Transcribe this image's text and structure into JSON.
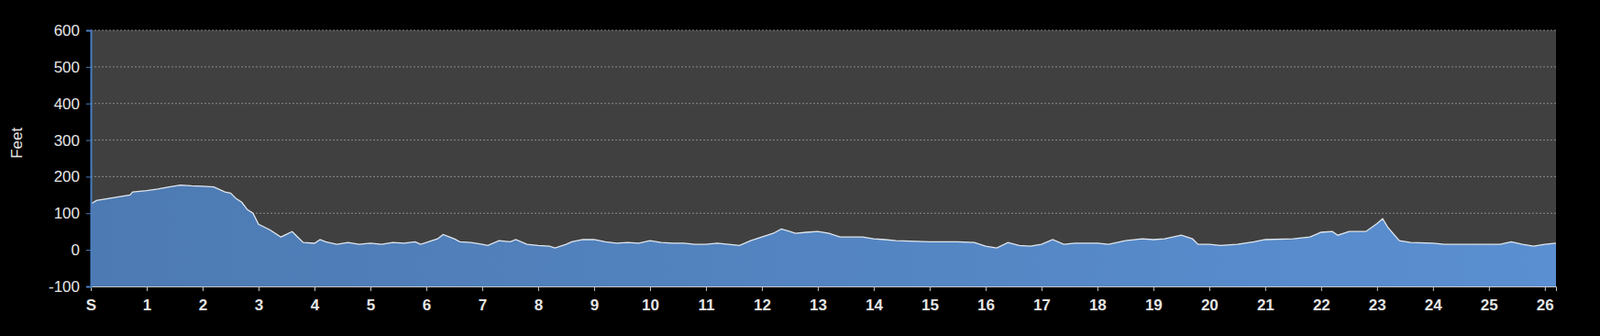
{
  "chart_data": {
    "type": "area",
    "y_label": "Feet",
    "color": "#5a8fd1",
    "grid": true,
    "xlim": [
      0,
      26.2
    ],
    "ylim": [
      -100,
      600
    ],
    "xticks": [
      {
        "value": 0,
        "label": "S"
      },
      1,
      2,
      3,
      4,
      5,
      6,
      7,
      8,
      9,
      10,
      11,
      12,
      13,
      14,
      15,
      16,
      17,
      18,
      19,
      20,
      21,
      22,
      23,
      24,
      25,
      26
    ],
    "yticks": [
      -100,
      0,
      100,
      200,
      300,
      400,
      500,
      600
    ],
    "x": [
      0,
      0.1,
      0.3,
      0.5,
      0.7,
      0.75,
      1.0,
      1.2,
      1.4,
      1.6,
      1.8,
      2.0,
      2.2,
      2.4,
      2.5,
      2.6,
      2.7,
      2.8,
      2.9,
      3.0,
      3.2,
      3.4,
      3.6,
      3.7,
      3.8,
      4.0,
      4.1,
      4.2,
      4.4,
      4.6,
      4.8,
      5.0,
      5.2,
      5.4,
      5.6,
      5.8,
      5.9,
      6.0,
      6.2,
      6.3,
      6.5,
      6.6,
      6.8,
      7.0,
      7.1,
      7.3,
      7.5,
      7.6,
      7.8,
      8.0,
      8.2,
      8.3,
      8.5,
      8.6,
      8.8,
      9.0,
      9.2,
      9.4,
      9.6,
      9.8,
      10.0,
      10.2,
      10.4,
      10.6,
      10.8,
      11.0,
      11.2,
      11.4,
      11.6,
      11.8,
      12.0,
      12.2,
      12.35,
      12.5,
      12.6,
      12.8,
      13.0,
      13.2,
      13.4,
      13.6,
      13.8,
      14.0,
      14.2,
      14.4,
      15.0,
      15.5,
      15.8,
      16.0,
      16.2,
      16.4,
      16.6,
      16.8,
      17.0,
      17.2,
      17.4,
      17.6,
      18.0,
      18.2,
      18.5,
      18.8,
      19.0,
      19.2,
      19.5,
      19.7,
      19.8,
      20.0,
      20.2,
      20.5,
      20.8,
      21.0,
      21.5,
      21.8,
      22.0,
      22.2,
      22.3,
      22.5,
      22.8,
      23.0,
      23.1,
      23.2,
      23.4,
      23.6,
      24.0,
      24.2,
      24.4,
      24.8,
      25.0,
      25.2,
      25.4,
      25.6,
      25.8,
      26.0,
      26.2
    ],
    "values": [
      125,
      135,
      140,
      145,
      150,
      158,
      162,
      166,
      172,
      177,
      175,
      174,
      172,
      158,
      155,
      140,
      130,
      110,
      100,
      70,
      55,
      35,
      50,
      35,
      20,
      18,
      28,
      22,
      15,
      20,
      15,
      18,
      15,
      20,
      18,
      22,
      15,
      20,
      30,
      42,
      30,
      22,
      20,
      15,
      12,
      25,
      22,
      28,
      15,
      12,
      10,
      5,
      15,
      22,
      28,
      28,
      22,
      18,
      20,
      18,
      25,
      20,
      18,
      18,
      15,
      15,
      18,
      15,
      12,
      25,
      35,
      45,
      57,
      50,
      45,
      48,
      50,
      45,
      35,
      35,
      35,
      30,
      28,
      25,
      22,
      22,
      20,
      10,
      5,
      20,
      12,
      10,
      15,
      28,
      15,
      18,
      18,
      15,
      25,
      30,
      28,
      30,
      40,
      30,
      15,
      15,
      12,
      15,
      22,
      28,
      30,
      35,
      48,
      50,
      40,
      50,
      50,
      72,
      85,
      60,
      25,
      20,
      18,
      15,
      15,
      15,
      15,
      15,
      22,
      15,
      10,
      15,
      18
    ]
  }
}
